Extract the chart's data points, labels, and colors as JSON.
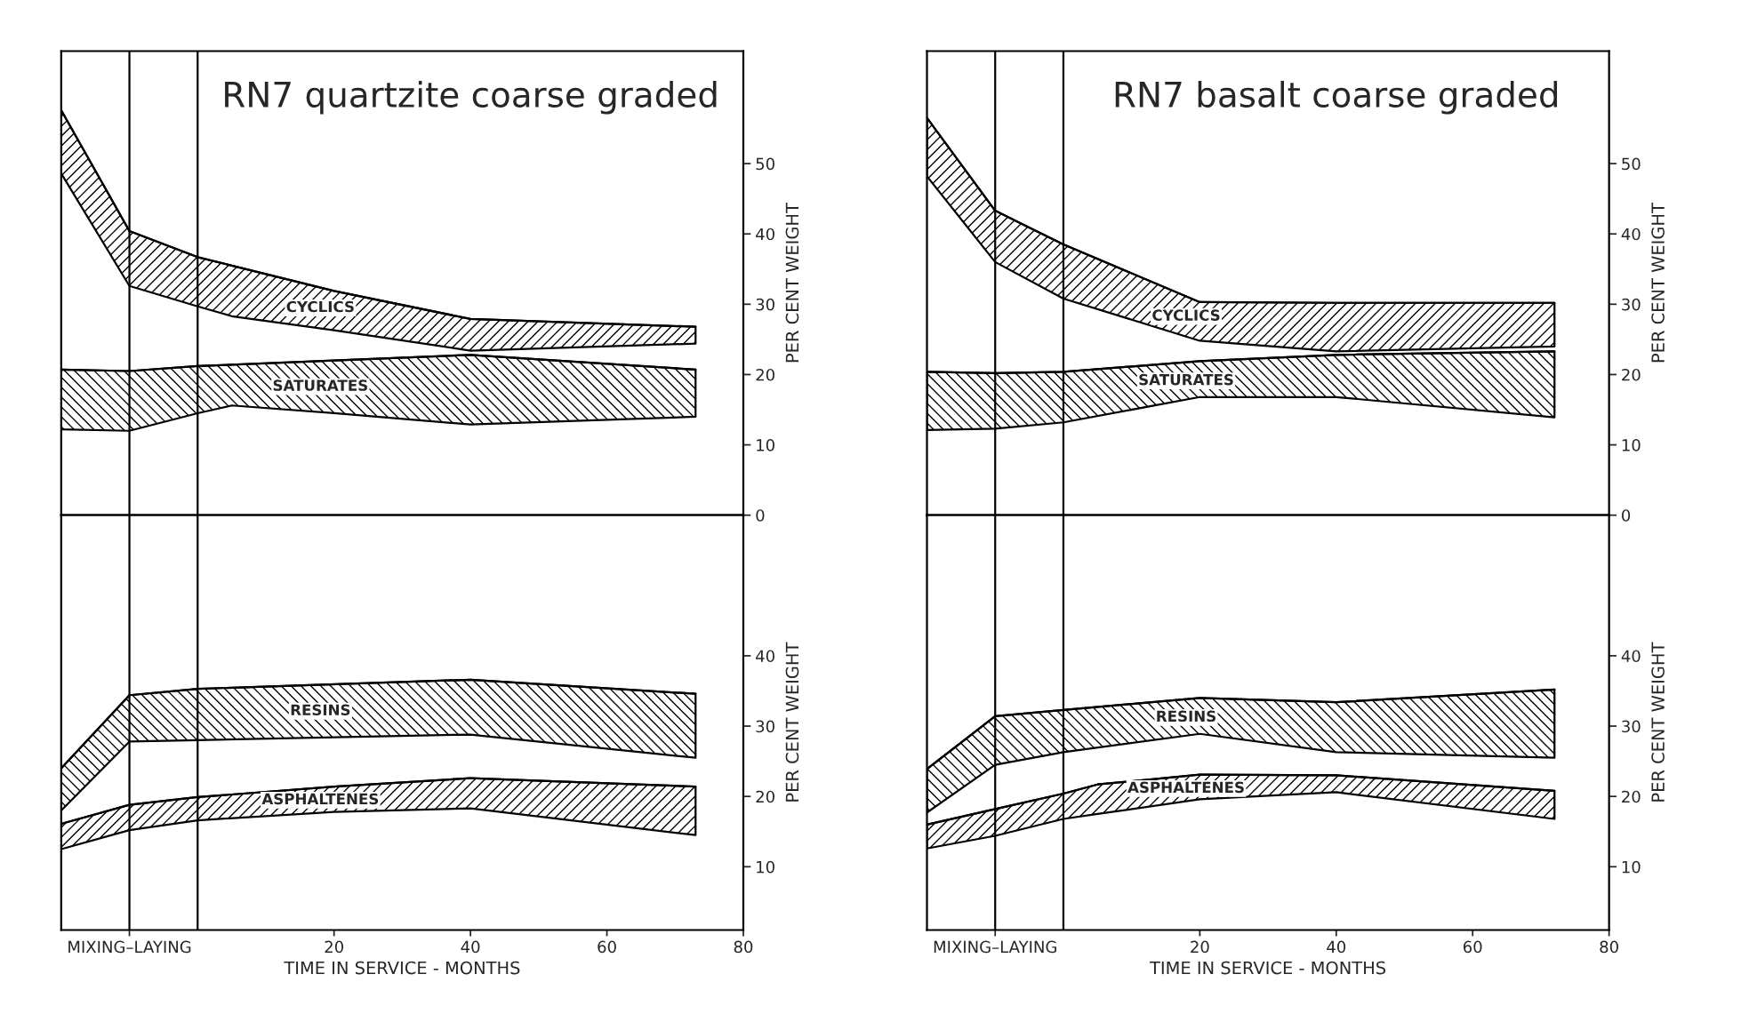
{
  "chart_data": [
    {
      "type": "line",
      "title": "RN7 quartzite coarse graded",
      "ylabel": "PER CENT WEIGHT",
      "xlim": [
        -20,
        80
      ],
      "ylim": [
        0,
        66
      ],
      "yticks": [
        0,
        10,
        20,
        30,
        40,
        50
      ],
      "tick_labels": "y",
      "ref_lines": [
        {
          "axis": "x",
          "value": -10
        },
        {
          "axis": "x",
          "value": 0
        }
      ],
      "series": [
        {
          "name": "CYCLICS",
          "color": "#000000",
          "x": [
            -20,
            -10,
            0,
            5,
            20,
            40,
            73
          ],
          "values": [
            57.6,
            40.4,
            36.7,
            35.5,
            31.9,
            27.9,
            26.8
          ],
          "upper": [
            57.6,
            40.4,
            36.7,
            35.5,
            31.9,
            27.9,
            26.8
          ],
          "lower": [
            48.6,
            32.6,
            29.7,
            28.3,
            26.3,
            23.4,
            24.4
          ]
        },
        {
          "name": "SATURATES",
          "color": "#000000",
          "x": [
            -20,
            -10,
            0,
            5,
            20,
            40,
            73
          ],
          "values": [
            20.7,
            20.5,
            21.2,
            21.4,
            22.0,
            22.8,
            20.7
          ],
          "upper": [
            20.7,
            20.5,
            21.2,
            21.4,
            22.0,
            22.8,
            20.7
          ],
          "lower": [
            12.2,
            12.0,
            14.5,
            15.6,
            14.5,
            12.9,
            14.0
          ]
        }
      ]
    },
    {
      "type": "line",
      "xlabel": "TIME IN SERVICE - MONTHS",
      "ylabel": "PER CENT WEIGHT",
      "xlim": [
        -20,
        80
      ],
      "xticks": [
        {
          "value": -10,
          "label": "MIXING–LAYING"
        },
        20,
        40,
        60,
        80
      ],
      "ylim": [
        1,
        60
      ],
      "yticks": [
        10,
        20,
        30,
        40
      ],
      "ref_lines": [
        {
          "axis": "x",
          "value": -10
        },
        {
          "axis": "x",
          "value": 0
        }
      ],
      "series": [
        {
          "name": "RESINS",
          "color": "#000000",
          "x": [
            -20,
            -10,
            0,
            40,
            73
          ],
          "values": [
            24.0,
            34.4,
            35.3,
            36.6,
            34.6
          ],
          "upper": [
            24.0,
            34.4,
            35.3,
            36.6,
            34.6
          ],
          "lower": [
            18.0,
            27.8,
            28.0,
            28.8,
            25.5
          ]
        },
        {
          "name": "ASPHALTENES",
          "color": "#000000",
          "x": [
            -20,
            -10,
            0,
            20,
            40,
            73
          ],
          "values": [
            16.1,
            18.8,
            19.9,
            21.4,
            22.6,
            21.4
          ],
          "upper": [
            16.1,
            18.8,
            19.9,
            21.4,
            22.6,
            21.4
          ],
          "lower": [
            12.5,
            15.2,
            16.6,
            17.8,
            18.3,
            14.5
          ]
        }
      ]
    },
    {
      "type": "line",
      "title": "RN7 basalt coarse graded",
      "ylabel": "PER CENT WEIGHT",
      "xlim": [
        -20,
        80
      ],
      "ylim": [
        0,
        66
      ],
      "yticks": [
        0,
        10,
        20,
        30,
        40,
        50
      ],
      "tick_labels": "y",
      "ref_lines": [
        {
          "axis": "x",
          "value": -10
        },
        {
          "axis": "x",
          "value": 0
        }
      ],
      "series": [
        {
          "name": "CYCLICS",
          "color": "#000000",
          "x": [
            -20,
            -10,
            0,
            20,
            40,
            72
          ],
          "values": [
            56.5,
            43.3,
            38.5,
            30.3,
            30.2,
            30.2
          ],
          "upper": [
            56.5,
            43.3,
            38.5,
            30.3,
            30.2,
            30.2
          ],
          "lower": [
            48.2,
            36.0,
            30.8,
            24.8,
            23.3,
            24.0
          ]
        },
        {
          "name": "SATURATES",
          "color": "#000000",
          "x": [
            -20,
            -10,
            0,
            20,
            40,
            72
          ],
          "values": [
            20.4,
            20.2,
            20.4,
            21.9,
            22.8,
            23.3
          ],
          "upper": [
            20.4,
            20.2,
            20.4,
            21.9,
            22.8,
            23.3
          ],
          "lower": [
            12.1,
            12.3,
            13.2,
            16.8,
            16.8,
            13.9
          ]
        }
      ]
    },
    {
      "type": "line",
      "xlabel": "TIME IN SERVICE - MONTHS",
      "ylabel": "PER CENT WEIGHT",
      "xlim": [
        -20,
        80
      ],
      "xticks": [
        {
          "value": -10,
          "label": "MIXING–LAYING"
        },
        20,
        40,
        60,
        80
      ],
      "ylim": [
        1,
        60
      ],
      "yticks": [
        10,
        20,
        30,
        40
      ],
      "ref_lines": [
        {
          "axis": "x",
          "value": -10
        },
        {
          "axis": "x",
          "value": 0
        }
      ],
      "series": [
        {
          "name": "RESINS",
          "color": "#000000",
          "x": [
            -20,
            -10,
            0,
            20,
            40,
            72
          ],
          "values": [
            23.9,
            31.4,
            32.3,
            34.0,
            33.4,
            35.2
          ],
          "upper": [
            23.9,
            31.4,
            32.3,
            34.0,
            33.4,
            35.2
          ],
          "lower": [
            17.7,
            24.5,
            26.3,
            28.9,
            26.3,
            25.5
          ]
        },
        {
          "name": "ASPHALTENES",
          "color": "#000000",
          "x": [
            -20,
            -10,
            0,
            5,
            20,
            40,
            72
          ],
          "values": [
            16.0,
            18.2,
            20.4,
            21.7,
            23.1,
            23.0,
            20.8
          ],
          "upper": [
            16.0,
            18.2,
            20.4,
            21.7,
            23.1,
            23.0,
            20.8
          ],
          "lower": [
            12.6,
            14.4,
            16.8,
            17.5,
            19.6,
            20.6,
            16.8
          ]
        }
      ]
    }
  ]
}
